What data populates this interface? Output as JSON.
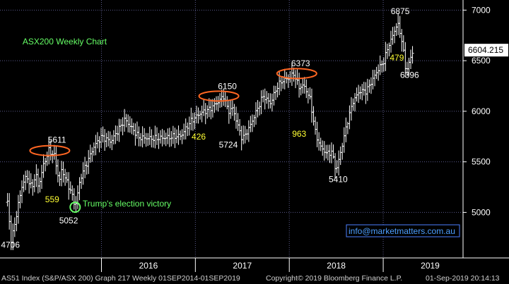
{
  "chart_data": {
    "type": "bar",
    "subtype": "ohlc",
    "title": "ASX200 Weekly Chart",
    "ylim": [
      4550,
      7100
    ],
    "yticks": [
      5000,
      5500,
      6000,
      6500,
      7000
    ],
    "xlim": [
      2014.92,
      2019.85
    ],
    "year_labels": [
      {
        "label": "2016",
        "x": 2016.5
      },
      {
        "label": "2017",
        "x": 2017.5
      },
      {
        "label": "2018",
        "x": 2018.5
      },
      {
        "label": "2019",
        "x": 2019.5
      }
    ],
    "year_boundaries": [
      2016.0,
      2017.0,
      2018.0,
      2019.0
    ],
    "last_price": {
      "label": "6604.215",
      "value": 6604.215
    },
    "path": [
      [
        2015.0,
        5100
      ],
      [
        2015.04,
        4706
      ],
      [
        2015.1,
        5000
      ],
      [
        2015.15,
        5250
      ],
      [
        2015.2,
        5360
      ],
      [
        2015.26,
        5240
      ],
      [
        2015.3,
        5380
      ],
      [
        2015.33,
        5250
      ],
      [
        2015.38,
        5460
      ],
      [
        2015.44,
        5611
      ],
      [
        2015.5,
        5560
      ],
      [
        2015.55,
        5300
      ],
      [
        2015.58,
        5430
      ],
      [
        2015.63,
        5300
      ],
      [
        2015.68,
        5200
      ],
      [
        2015.72,
        5052
      ],
      [
        2015.78,
        5350
      ],
      [
        2015.85,
        5500
      ],
      [
        2015.92,
        5650
      ],
      [
        2016.0,
        5750
      ],
      [
        2016.1,
        5700
      ],
      [
        2016.25,
        5920
      ],
      [
        2016.4,
        5740
      ],
      [
        2016.55,
        5730
      ],
      [
        2016.7,
        5740
      ],
      [
        2016.85,
        5760
      ],
      [
        2016.95,
        5900
      ],
      [
        2017.05,
        5980
      ],
      [
        2017.15,
        6020
      ],
      [
        2017.25,
        6100
      ],
      [
        2017.3,
        6150
      ],
      [
        2017.35,
        6000
      ],
      [
        2017.4,
        6030
      ],
      [
        2017.45,
        5860
      ],
      [
        2017.5,
        5724
      ],
      [
        2017.57,
        5830
      ],
      [
        2017.65,
        6000
      ],
      [
        2017.72,
        6150
      ],
      [
        2017.8,
        6080
      ],
      [
        2017.87,
        6240
      ],
      [
        2017.92,
        6300
      ],
      [
        2018.0,
        6330
      ],
      [
        2018.05,
        6373
      ],
      [
        2018.1,
        6240
      ],
      [
        2018.16,
        6250
      ],
      [
        2018.22,
        6120
      ],
      [
        2018.28,
        5780
      ],
      [
        2018.33,
        5650
      ],
      [
        2018.4,
        5580
      ],
      [
        2018.45,
        5600
      ],
      [
        2018.5,
        5410
      ],
      [
        2018.56,
        5650
      ],
      [
        2018.62,
        5900
      ],
      [
        2018.68,
        6100
      ],
      [
        2018.75,
        6200
      ],
      [
        2018.82,
        6200
      ],
      [
        2018.88,
        6300
      ],
      [
        2018.95,
        6420
      ],
      [
        2019.0,
        6480
      ],
      [
        2019.06,
        6660
      ],
      [
        2019.1,
        6740
      ],
      [
        2019.15,
        6875
      ],
      [
        2019.2,
        6700
      ],
      [
        2019.24,
        6396
      ],
      [
        2019.28,
        6490
      ],
      [
        2019.32,
        6604
      ]
    ],
    "annotations": [
      {
        "text": "6875",
        "x": 2019.08,
        "y": 6960,
        "color": "#ffffff"
      },
      {
        "text": "6604.215",
        "x": 2019.6,
        "y": 6604,
        "color": "#000000"
      },
      {
        "text": "6373",
        "x": 2018.02,
        "y": 6445,
        "color": "#ffffff"
      },
      {
        "text": "6396",
        "x": 2019.18,
        "y": 6330,
        "color": "#ffffff"
      },
      {
        "text": "479",
        "x": 2019.07,
        "y": 6500,
        "color": "#ffff33"
      },
      {
        "text": "6150",
        "x": 2017.24,
        "y": 6220,
        "color": "#ffffff"
      },
      {
        "text": "963",
        "x": 2018.03,
        "y": 5750,
        "color": "#ffff33"
      },
      {
        "text": "426",
        "x": 2016.96,
        "y": 5720,
        "color": "#ffff33"
      },
      {
        "text": "5724",
        "x": 2017.25,
        "y": 5640,
        "color": "#ffffff"
      },
      {
        "text": "5611",
        "x": 2015.43,
        "y": 5690,
        "color": "#ffffff"
      },
      {
        "text": "5410",
        "x": 2018.42,
        "y": 5300,
        "color": "#ffffff"
      },
      {
        "text": "559",
        "x": 2015.4,
        "y": 5100,
        "color": "#ffff33"
      },
      {
        "text": "5052",
        "x": 2015.55,
        "y": 4890,
        "color": "#ffffff"
      },
      {
        "text": "4706",
        "x": 2014.93,
        "y": 4650,
        "color": "#ffffff"
      },
      {
        "text": "ASX200 Weekly Chart",
        "x": 2015.16,
        "y": 6660,
        "color": "#66ff66"
      },
      {
        "text": "Trump's election victory",
        "x": 2015.8,
        "y": 5060,
        "color": "#66ff66"
      }
    ],
    "ellipses": [
      {
        "x": 2015.45,
        "y": 5611
      },
      {
        "x": 2017.25,
        "y": 6150
      },
      {
        "x": 2018.08,
        "y": 6373
      }
    ],
    "circle_marker": {
      "x": 2015.72,
      "y": 5052
    },
    "watermark_link": "info@marketmatters.com.au",
    "colors": {
      "background": "#000000",
      "bars": "#ffffff",
      "grid": "#5a5a8a",
      "ellipse": "#ff6622",
      "marker": "#66ff66",
      "link_border": "#4d7fff",
      "link_text": "#4d9fff",
      "last_price_box": "#ffffff"
    }
  },
  "footer": {
    "left": "AS51 Index (S&P/ASX 200) Graph 217  Weekly 01SEP2014-01SEP2019",
    "copyright": "Copyright© 2019 Bloomberg Finance L.P.",
    "timestamp": "01-Sep-2019 20:14:13"
  }
}
